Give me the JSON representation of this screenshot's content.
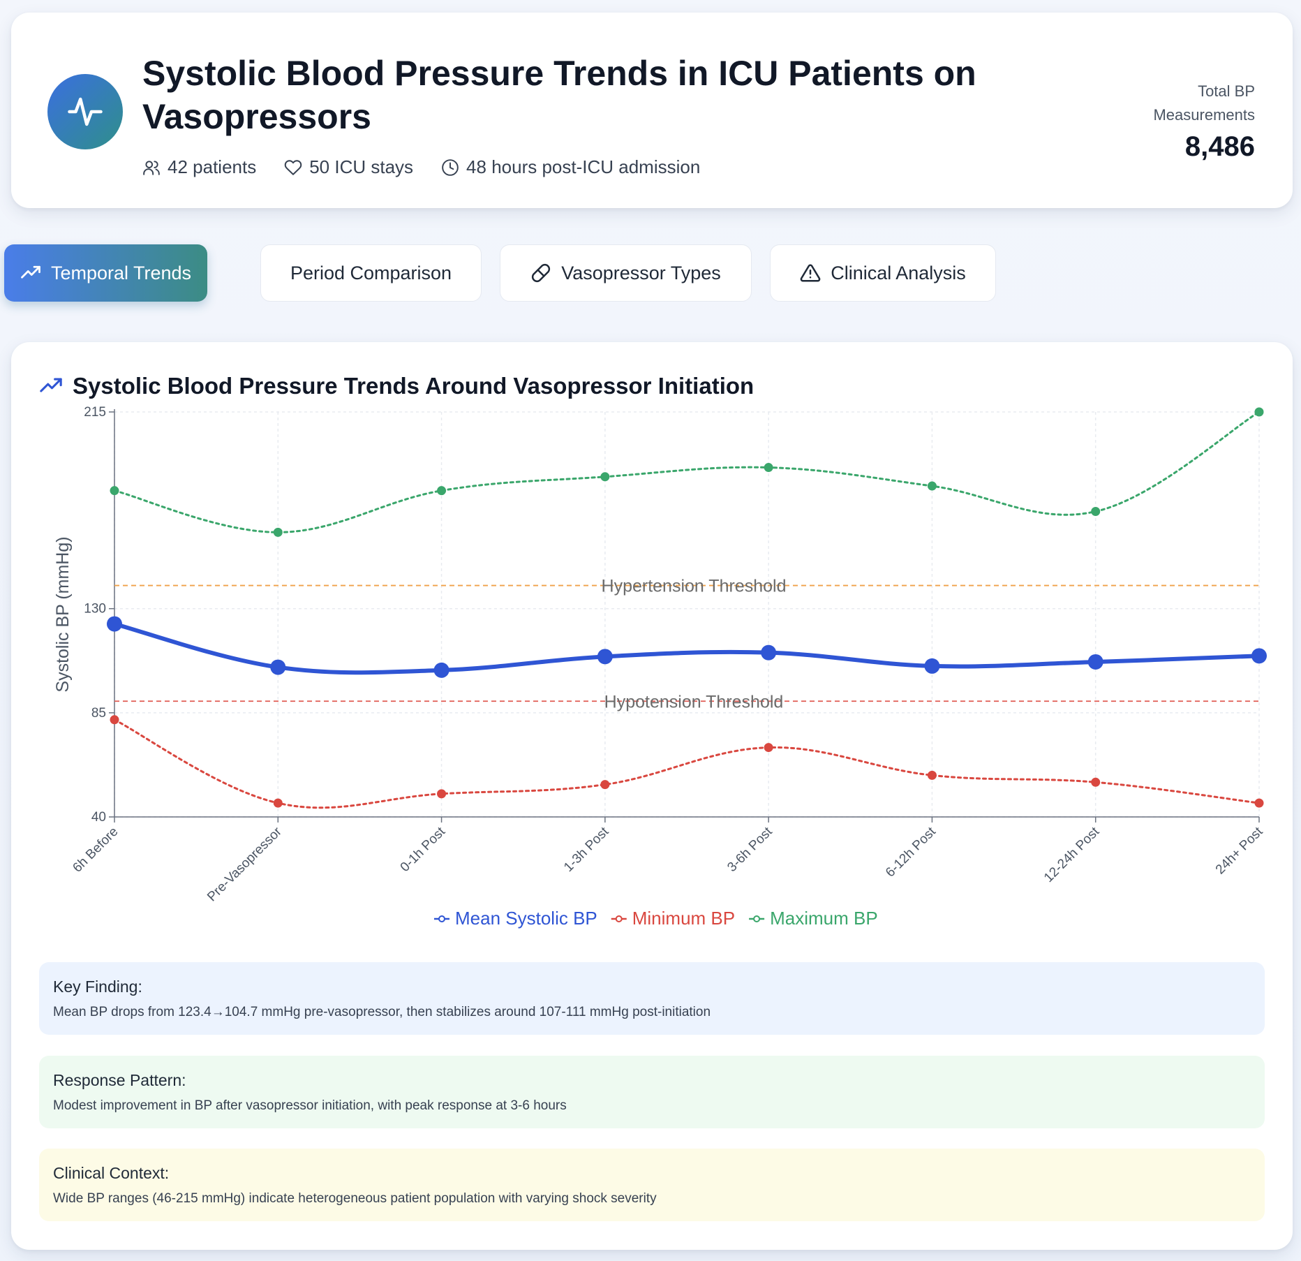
{
  "header": {
    "title": "Systolic Blood Pressure Trends in ICU Patients on Vasopressors",
    "meta": {
      "patients": "42 patients",
      "stays": "50 ICU stays",
      "window": "48 hours post-ICU admission"
    },
    "total_label": "Total BP Measurements",
    "total_value": "8,486"
  },
  "tabs": [
    {
      "label": "Temporal Trends",
      "icon": "trend-up-icon",
      "active": true
    },
    {
      "label": "Period Comparison",
      "icon": "",
      "active": false
    },
    {
      "label": "Vasopressor Types",
      "icon": "pill-icon",
      "active": false
    },
    {
      "label": "Clinical Analysis",
      "icon": "warning-icon",
      "active": false
    }
  ],
  "chart_section_title": "Systolic Blood Pressure Trends Around Vasopressor Initiation",
  "chart_data": {
    "type": "line",
    "title": "",
    "xlabel": "",
    "ylabel": "Systolic BP (mmHg)",
    "ylim": [
      40,
      215
    ],
    "yticks": [
      40,
      85,
      130,
      215
    ],
    "categories": [
      "6h Before",
      "Pre-Vasopressor",
      "0-1h Post",
      "1-3h Post",
      "3-6h Post",
      "6-12h Post",
      "12-24h Post",
      "24h+ Post"
    ],
    "series": [
      {
        "name": "Mean Systolic BP",
        "color": "#2f55d4",
        "style": "solid",
        "values": [
          123.4,
          104.7,
          103.4,
          109.3,
          111.0,
          105.2,
          107.0,
          109.6
        ]
      },
      {
        "name": "Minimum BP",
        "color": "#d9473f",
        "style": "dotted",
        "values": [
          82,
          46,
          50,
          54,
          70,
          58,
          55,
          46
        ]
      },
      {
        "name": "Maximum BP",
        "color": "#3aa66b",
        "style": "dotted",
        "values": [
          181,
          163,
          181,
          187,
          191,
          183,
          172,
          215
        ]
      }
    ],
    "reference_lines": [
      {
        "label": "Hypertension Threshold",
        "value": 140,
        "color": "#f0a24a"
      },
      {
        "label": "Hypotension Threshold",
        "value": 90,
        "color": "#e05a52"
      }
    ],
    "grid": true,
    "legend_position": "bottom"
  },
  "notes": {
    "key_finding": {
      "title": "Key Finding:",
      "text": "Mean BP drops from 123.4→104.7 mmHg pre-vasopressor, then stabilizes around 107-111 mmHg post-initiation"
    },
    "response_pattern": {
      "title": "Response Pattern:",
      "text": "Modest improvement in BP after vasopressor initiation, with peak response at 3-6 hours"
    },
    "clinical_context": {
      "title": "Clinical Context:",
      "text": "Wide BP ranges (46-215 mmHg) indicate heterogeneous patient population with varying shock severity"
    }
  }
}
